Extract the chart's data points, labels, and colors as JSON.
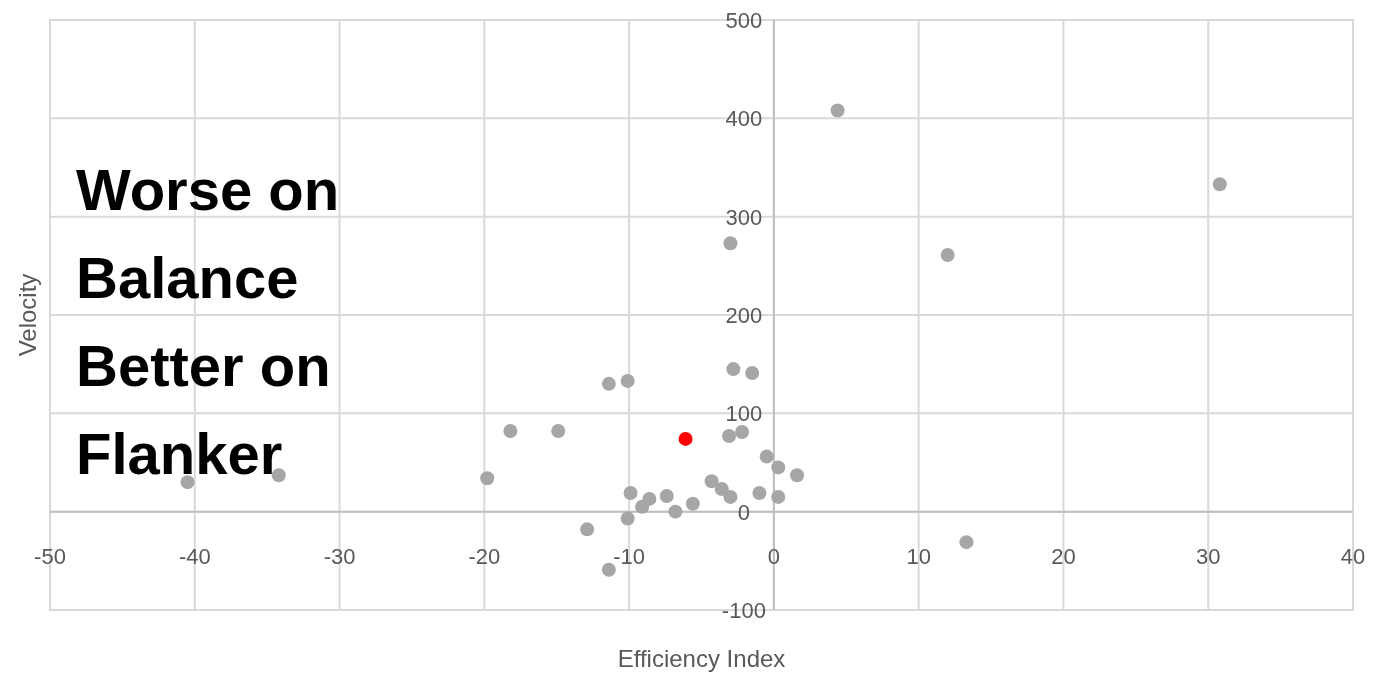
{
  "chart_data": {
    "type": "scatter",
    "xlabel": "Efficiency Index",
    "ylabel": "Velocity",
    "xlim": [
      -50,
      40
    ],
    "xticks": [
      -50,
      -40,
      -30,
      -20,
      -10,
      0,
      10,
      20,
      30,
      40
    ],
    "ylim": [
      -100,
      500
    ],
    "yticks": [
      -100,
      0,
      100,
      200,
      300,
      400,
      500
    ],
    "grid": true,
    "marker": "circle",
    "annotations": [
      "Worse on Balance Better on Flanker"
    ],
    "series": [
      {
        "color": "#a6a6a6",
        "x": [
          -40.5,
          -34.2,
          -19.8,
          -18.2,
          -14.9,
          -12.9,
          -11.4,
          -11.4,
          -10.1,
          -10.1,
          -9.9,
          -9.1,
          -8.6,
          -7.4,
          -6.8,
          -5.6,
          -4.3,
          -3.6,
          -3.0,
          -3.0,
          -3.1,
          -2.8,
          -2.2,
          -1.5,
          -1.0,
          -0.5,
          0.3,
          0.3,
          1.6,
          4.4,
          12.0,
          13.3,
          30.8
        ],
        "values": [
          30,
          37,
          34,
          82,
          82,
          -18,
          130,
          -59,
          133,
          -7,
          19,
          5,
          13,
          16,
          0,
          8,
          31,
          23,
          15,
          273,
          77,
          145,
          81,
          141,
          19,
          56,
          45,
          15,
          37,
          408,
          261,
          -31,
          333
        ]
      },
      {
        "color": "#ff0000",
        "x": [
          -6.1
        ],
        "values": [
          74
        ]
      }
    ]
  }
}
